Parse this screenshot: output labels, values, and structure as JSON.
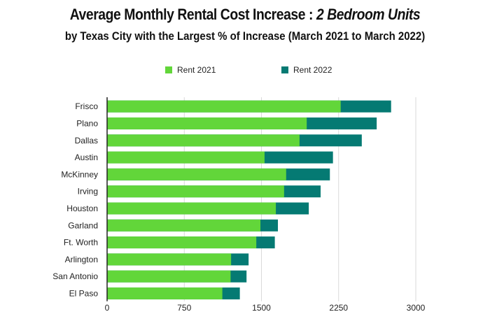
{
  "chart_data": {
    "type": "bar",
    "orientation": "horizontal",
    "title": "Average Monthly Rental Cost Increase : ",
    "title_emphasis": "2 Bedroom Units",
    "subtitle": "by Texas City with the Largest % of Increase (March 2021 to March 2022)",
    "legend_position": "top",
    "categories": [
      "Frisco",
      "Plano",
      "Dallas",
      "Austin",
      "McKinney",
      "Irving",
      "Houston",
      "Garland",
      "Ft. Worth",
      "Arlington",
      "San Antonio",
      "El Paso"
    ],
    "series": [
      {
        "name": "Rent 2021",
        "color": "#62d63a",
        "values": [
          2270,
          1940,
          1870,
          1530,
          1740,
          1720,
          1640,
          1490,
          1450,
          1205,
          1200,
          1120
        ]
      },
      {
        "name": "Rent 2022",
        "color": "#057a73",
        "values": [
          2760,
          2620,
          2475,
          2195,
          2165,
          2075,
          1960,
          1660,
          1630,
          1375,
          1355,
          1290
        ]
      }
    ],
    "xlim": [
      0,
      3000
    ],
    "xticks": [
      "0",
      "750",
      "1500",
      "2250",
      "3000"
    ],
    "grid": true
  }
}
